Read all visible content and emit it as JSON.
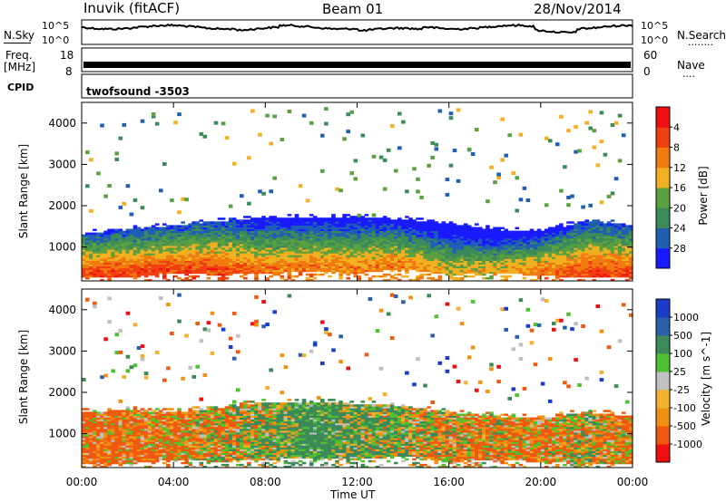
{
  "header": {
    "station": "Inuvik (fitACF)",
    "beam": "Beam 01",
    "date": "28/Nov/2014"
  },
  "sky_panel": {
    "left_label": "N.Sky",
    "right_label": "N.Search",
    "left_ticks": [
      "10^5",
      "10^0"
    ],
    "right_ticks": [
      "10^5",
      "10^0"
    ],
    "right_dots": "........"
  },
  "freq_panel": {
    "left_label_top": "Freq.",
    "left_label_bottom": "[MHz]",
    "left_ticks": [
      "18",
      "8"
    ],
    "right_label": "Nave",
    "right_ticks": [
      "60",
      "0"
    ],
    "right_dots": "...."
  },
  "cpid_panel": {
    "label": "CPID",
    "text": "twofsound -3503"
  },
  "time_axis": {
    "label": "Time UT",
    "ticks": [
      "00:00",
      "04:00",
      "08:00",
      "12:00",
      "16:00",
      "20:00",
      "00:00"
    ]
  },
  "colors": {
    "power": [
      "#1a1aff",
      "#1f5fb3",
      "#3c8a5a",
      "#5aa040",
      "#f0b020",
      "#f07a10",
      "#f04010",
      "#ee1010"
    ],
    "velocity": [
      "#ee1010",
      "#f05a10",
      "#f09010",
      "#f0b030",
      "#c0c0c0",
      "#50c030",
      "#3c8a5a",
      "#2a60a8",
      "#1a3cc8"
    ]
  },
  "chart_data": [
    {
      "type": "heatmap",
      "title": "",
      "ylabel": "Slant Range [km]",
      "xlabel": "",
      "ylim": [
        180,
        4500
      ],
      "y_ticks": [
        "1000",
        "2000",
        "3000",
        "4000"
      ],
      "colorbar": {
        "label": "Power [dB]",
        "ticks": [
          "4",
          "8",
          "12",
          "16",
          "20",
          "24",
          "28"
        ]
      },
      "x": [
        "00:00",
        "02:00",
        "04:00",
        "06:00",
        "08:00",
        "10:00",
        "12:00",
        "14:00",
        "16:00",
        "18:00",
        "20:00",
        "22:00",
        "00:00"
      ],
      "band_lower_km": [
        400,
        400,
        500,
        450,
        500,
        550,
        500,
        600,
        450,
        500,
        450,
        400,
        400
      ],
      "band_upper_km": [
        1300,
        1400,
        1500,
        1600,
        1700,
        1700,
        1700,
        1650,
        1550,
        1400,
        1350,
        1600,
        1500
      ],
      "peak_power_db": [
        28,
        28,
        28,
        28,
        24,
        24,
        24,
        24,
        20,
        20,
        24,
        28,
        28
      ]
    },
    {
      "type": "heatmap",
      "title": "",
      "ylabel": "Slant Range [km]",
      "xlabel": "Time UT",
      "ylim": [
        180,
        4500
      ],
      "y_ticks": [
        "1000",
        "2000",
        "3000",
        "4000"
      ],
      "colorbar": {
        "label": "Velocity [m s^-1]",
        "ticks": [
          "1000",
          "500",
          "100",
          "25",
          "-25",
          "-100",
          "-500",
          "-1000"
        ]
      },
      "x": [
        "00:00",
        "02:00",
        "04:00",
        "06:00",
        "08:00",
        "10:00",
        "12:00",
        "14:00",
        "16:00",
        "18:00",
        "20:00",
        "22:00",
        "00:00"
      ],
      "band_lower_km": [
        400,
        400,
        500,
        450,
        500,
        550,
        500,
        600,
        450,
        500,
        450,
        400,
        400
      ],
      "band_upper_km": [
        1500,
        1550,
        1500,
        1600,
        1750,
        1750,
        1700,
        1650,
        1500,
        1400,
        1350,
        1500,
        1400
      ],
      "mean_velocity_ms": [
        -150,
        -120,
        -100,
        -50,
        50,
        200,
        100,
        50,
        -50,
        -80,
        -100,
        0,
        -120
      ]
    }
  ]
}
